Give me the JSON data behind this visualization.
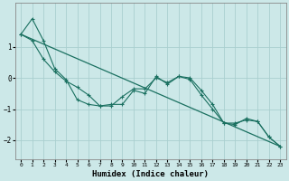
{
  "xlabel": "Humidex (Indice chaleur)",
  "ylabel": "",
  "background_color": "#cce8e8",
  "grid_color": "#aacfcf",
  "line_color": "#1a7060",
  "xlim": [
    -0.5,
    23.5
  ],
  "ylim": [
    -2.6,
    2.4
  ],
  "x_ticks": [
    0,
    1,
    2,
    3,
    4,
    5,
    6,
    7,
    8,
    9,
    10,
    11,
    12,
    13,
    14,
    15,
    16,
    17,
    18,
    19,
    20,
    21,
    22,
    23
  ],
  "y_ticks": [
    -2,
    -1,
    0,
    1
  ],
  "line1_x": [
    0,
    1,
    2,
    3,
    4,
    5,
    6,
    7,
    8,
    9,
    10,
    11,
    12,
    13,
    14,
    15,
    16,
    17,
    18,
    19,
    20,
    21,
    22,
    23
  ],
  "line1_y": [
    1.4,
    1.9,
    1.2,
    0.3,
    -0.05,
    -0.7,
    -0.85,
    -0.9,
    -0.85,
    -0.85,
    -0.4,
    -0.5,
    0.05,
    -0.2,
    0.05,
    -0.05,
    -0.55,
    -1.0,
    -1.45,
    -1.5,
    -1.3,
    -1.4,
    -1.9,
    -2.2
  ],
  "line2_x": [
    0,
    1,
    2,
    3,
    4,
    5,
    6,
    7,
    8,
    9,
    10,
    11,
    12,
    13,
    14,
    15,
    16,
    17,
    18,
    19,
    20,
    21,
    22,
    23
  ],
  "line2_y": [
    1.4,
    1.2,
    0.6,
    0.2,
    -0.1,
    -0.3,
    -0.55,
    -0.9,
    -0.9,
    -0.6,
    -0.35,
    -0.35,
    0.0,
    -0.15,
    0.05,
    -0.0,
    -0.4,
    -0.85,
    -1.45,
    -1.45,
    -1.35,
    -1.4,
    -1.9,
    -2.2
  ],
  "line3_x": [
    0,
    23
  ],
  "line3_y": [
    1.4,
    -2.2
  ]
}
